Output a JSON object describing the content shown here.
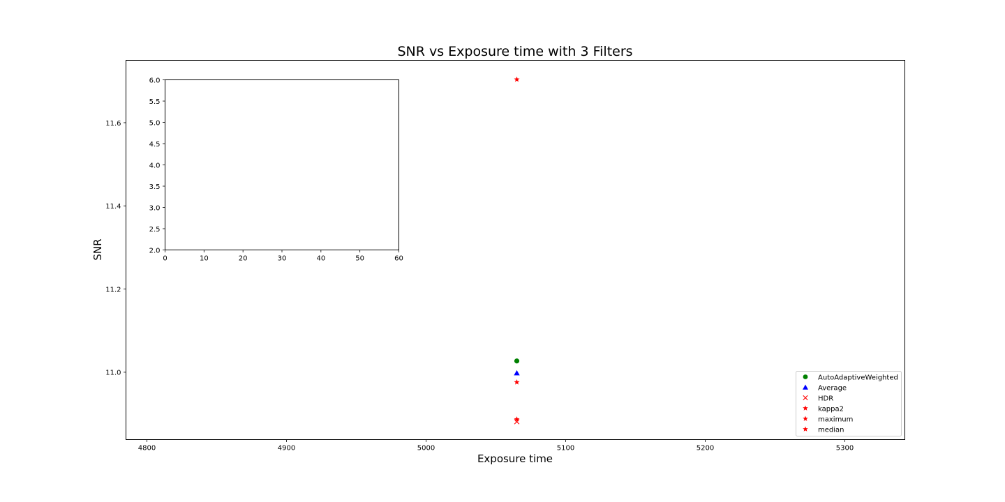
{
  "chart_data": [
    {
      "type": "scatter",
      "title": "SNR vs Exposure time with 3 Filters",
      "xlabel": "Exposure time",
      "ylabel": "SNR",
      "xlim": [
        4785,
        5343
      ],
      "ylim": [
        10.838,
        11.75
      ],
      "xticks": [
        4800,
        4900,
        5000,
        5100,
        5200,
        5300
      ],
      "yticks": [
        11.0,
        11.2,
        11.4,
        11.6
      ],
      "xtick_labels": [
        "4800",
        "4900",
        "5000",
        "5100",
        "5200",
        "5300"
      ],
      "ytick_labels": [
        "11.0",
        "11.2",
        "11.4",
        "11.6"
      ],
      "grid": false,
      "legend_position": "lower-right",
      "series": [
        {
          "name": "AutoAdaptiveWeighted",
          "marker": "circle",
          "color": "#008000",
          "points": [
            {
              "x": 5065,
              "y": 11.027
            }
          ]
        },
        {
          "name": "Average",
          "marker": "triangle",
          "color": "#0000ff",
          "points": [
            {
              "x": 5065,
              "y": 10.998
            }
          ]
        },
        {
          "name": "HDR",
          "marker": "x",
          "color": "#ff0000",
          "points": [
            {
              "x": 5065,
              "y": 10.881
            }
          ]
        },
        {
          "name": "kappa2",
          "marker": "star",
          "color": "#ff0000",
          "points": [
            {
              "x": 5065,
              "y": 10.976
            }
          ]
        },
        {
          "name": "maximum",
          "marker": "star",
          "color": "#ff0000",
          "points": [
            {
              "x": 5065,
              "y": 11.704
            }
          ]
        },
        {
          "name": "median",
          "marker": "star",
          "color": "#ff0000",
          "points": [
            {
              "x": 5065,
              "y": 10.887
            }
          ]
        }
      ]
    },
    {
      "type": "scatter",
      "title": "",
      "xlabel": "",
      "ylabel": "",
      "xlim": [
        0,
        60
      ],
      "ylim": [
        2.0,
        6.0
      ],
      "xticks": [
        0,
        10,
        20,
        30,
        40,
        50,
        60
      ],
      "yticks": [
        2.0,
        2.5,
        3.0,
        3.5,
        4.0,
        4.5,
        5.0,
        5.5,
        6.0
      ],
      "xtick_labels": [
        "0",
        "10",
        "20",
        "30",
        "40",
        "50",
        "60"
      ],
      "ytick_labels": [
        "2.0",
        "2.5",
        "3.0",
        "3.5",
        "4.0",
        "4.5",
        "5.0",
        "5.5",
        "6.0"
      ],
      "grid": false,
      "series": []
    }
  ]
}
